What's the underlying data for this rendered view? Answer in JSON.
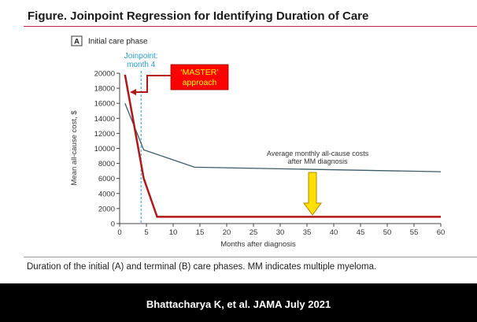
{
  "figure": {
    "title": "Figure. Joinpoint Regression for Identifying Duration of Care",
    "caption": "Duration of the initial (A) and terminal (B) care phases. MM indicates multiple myeloma."
  },
  "footer": {
    "citation": "Bhattacharya K, et al.   JAMA July 2021"
  },
  "colors": {
    "title_rule": "#c8254b",
    "overlay_line": "#b01818",
    "original_line": "#3a5b68",
    "joinpoint_line": "#2a9fd6",
    "master_box": "#ff0000",
    "master_text": "#ffff00",
    "arrow_fill": "#ffe000",
    "arrow_stroke": "#b08900"
  },
  "chart_data": {
    "type": "line",
    "panel_letter": "A",
    "panel_title": "Initial care phase",
    "xlabel": "Months after diagnosis",
    "ylabel": "Mean all-cause cost, $",
    "xlim": [
      0,
      60
    ],
    "ylim": [
      0,
      20000
    ],
    "x_ticks": [
      0,
      5,
      10,
      15,
      20,
      25,
      30,
      35,
      40,
      45,
      50,
      55,
      60
    ],
    "y_ticks": [
      0,
      2000,
      4000,
      6000,
      8000,
      10000,
      12000,
      14000,
      16000,
      18000,
      20000
    ],
    "joinpoint": {
      "x": 4,
      "label_lines": [
        "Joinpoint:",
        "month 4"
      ]
    },
    "series": [
      {
        "name": "Average monthly all-cause costs",
        "x": [
          1,
          4.5,
          14,
          60
        ],
        "y": [
          16000,
          9800,
          7500,
          6900
        ]
      },
      {
        "name": "MASTER approach",
        "x": [
          1,
          4.5,
          7,
          60
        ],
        "y": [
          19800,
          6000,
          900,
          900
        ]
      }
    ],
    "annotations": [
      {
        "id": "avg-cost",
        "lines": [
          "Average monthly all-cause costs",
          "after MM diagnosis"
        ],
        "x": 37,
        "y": 8600
      },
      {
        "id": "master",
        "lines": [
          "‘MASTER’",
          "approach"
        ]
      }
    ],
    "grid": false,
    "legend": "none"
  }
}
